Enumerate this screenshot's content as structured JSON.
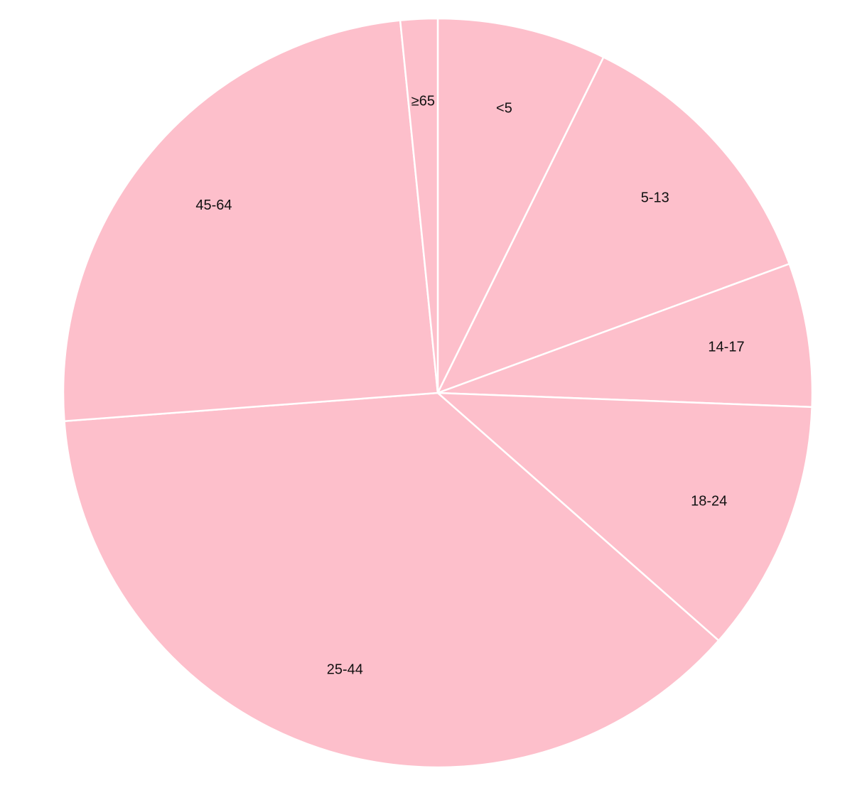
{
  "chart_data": {
    "type": "pie",
    "labels": [
      "<5",
      "5-13",
      "14-17",
      "18-24",
      "25-44",
      "45-64",
      "≥65"
    ],
    "values": [
      7.3,
      12.1,
      6.2,
      10.9,
      37.3,
      24.6,
      1.6
    ],
    "color": "#fdbfcb",
    "stroke_color": "#ffffff",
    "legend": "none",
    "start_angle": "12 o'clock",
    "direction": "clockwise"
  }
}
